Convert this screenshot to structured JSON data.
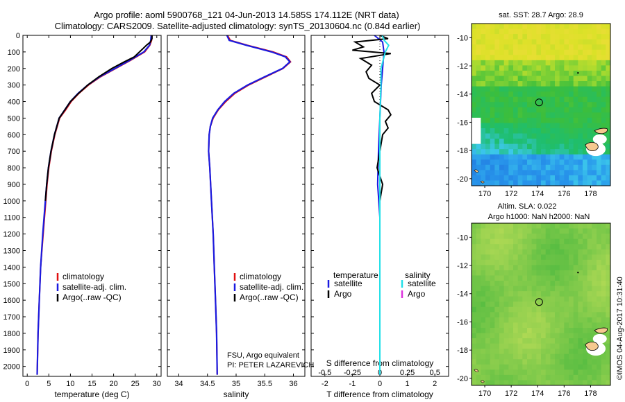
{
  "title": {
    "line1": "Argo profile: aoml 5900768_121 04-Jun-2013 14.585S 174.112E (NRT data)",
    "line2": "Climatology: CARS2009. Satellite-adjusted climatology: synTS_20130604.nc (0.84d earlier)"
  },
  "depth_axis": {
    "ticks": [
      0,
      100,
      200,
      300,
      400,
      500,
      600,
      700,
      800,
      900,
      1000,
      1100,
      1200,
      1300,
      1400,
      1500,
      1600,
      1700,
      1800,
      1900,
      2000
    ],
    "range": [
      0,
      2060
    ],
    "inverted": true
  },
  "colors": {
    "climatology": "#e01010",
    "satellite": "#1a1adf",
    "argo": "#000000",
    "salinity_satellite": "#22e0e8",
    "salinity_argo": "#dd33dd"
  },
  "chart_data": [
    {
      "type": "line",
      "panel": "temperature",
      "xlabel": "temperature (deg C)",
      "xlim": [
        -1,
        31
      ],
      "xticks": [
        0,
        5,
        10,
        15,
        20,
        25,
        30
      ],
      "legend_placement": "lower-center",
      "series": [
        {
          "key": "clim",
          "name": "climatology",
          "color": "#e01010",
          "depth": [
            0,
            30,
            60,
            100,
            150,
            200,
            250,
            300,
            350,
            400,
            450,
            500,
            600,
            700,
            800,
            900,
            1000,
            1200,
            1400,
            1600,
            1800,
            2050
          ],
          "values": [
            28.9,
            28.8,
            28.4,
            27.2,
            24.0,
            20.5,
            17.0,
            14.2,
            12.0,
            10.2,
            8.9,
            7.5,
            6.4,
            5.6,
            5.0,
            4.6,
            4.3,
            3.7,
            3.1,
            2.8,
            2.5,
            2.3
          ]
        },
        {
          "key": "sat",
          "name": "satellite-adj. clim.",
          "color": "#1a1adf",
          "depth": [
            0,
            30,
            60,
            100,
            150,
            200,
            250,
            300,
            350,
            400,
            450,
            500,
            600,
            700,
            800,
            900,
            1000,
            1200,
            1400,
            1600,
            1800,
            2050
          ],
          "values": [
            28.7,
            28.6,
            28.3,
            27.0,
            23.8,
            20.3,
            16.8,
            14.0,
            11.8,
            10.0,
            8.7,
            7.4,
            6.3,
            5.5,
            4.9,
            4.5,
            4.2,
            3.6,
            3.1,
            2.8,
            2.5,
            2.3
          ]
        },
        {
          "key": "argo",
          "name": "Argo(..raw -QC)",
          "color": "#000000",
          "depth": [
            0,
            20,
            40,
            60,
            80,
            100,
            130,
            160,
            200,
            250,
            300,
            350,
            400,
            450,
            500,
            600,
            700,
            800,
            900,
            1000
          ],
          "values": [
            28.9,
            28.9,
            28.5,
            27.6,
            26.8,
            26.0,
            24.8,
            22.5,
            19.6,
            16.6,
            14.0,
            11.9,
            10.0,
            8.7,
            7.4,
            6.3,
            5.5,
            4.9,
            4.5,
            4.2
          ]
        }
      ]
    },
    {
      "type": "line",
      "panel": "salinity",
      "xlabel": "salinity",
      "xlim": [
        33.8,
        36.2
      ],
      "xticks": [
        34,
        34.5,
        35,
        35.5,
        36
      ],
      "xtick_labels": [
        "34",
        "34.5",
        "35",
        "35.5",
        "36"
      ],
      "legend_placement": "lower-center",
      "series": [
        {
          "key": "clim",
          "name": "climatology",
          "color": "#e01010",
          "depth": [
            0,
            30,
            60,
            100,
            130,
            160,
            200,
            250,
            300,
            350,
            400,
            450,
            500,
            550,
            600,
            700,
            800,
            1000,
            1200,
            1400,
            1600,
            1800,
            2050
          ],
          "values": [
            34.85,
            34.9,
            35.2,
            35.65,
            35.88,
            35.95,
            35.82,
            35.52,
            35.22,
            34.98,
            34.82,
            34.69,
            34.6,
            34.55,
            34.53,
            34.52,
            34.54,
            34.57,
            34.6,
            34.62,
            34.64,
            34.66,
            34.67
          ]
        },
        {
          "key": "sat",
          "name": "satellite-adj. clim.",
          "color": "#1a1adf",
          "depth": [
            0,
            30,
            60,
            100,
            130,
            160,
            200,
            250,
            300,
            350,
            400,
            450,
            500,
            550,
            600,
            700,
            800,
            1000,
            1200,
            1400,
            1600,
            1800,
            2050
          ],
          "values": [
            34.84,
            34.88,
            35.18,
            35.62,
            35.86,
            35.94,
            35.81,
            35.5,
            35.2,
            34.96,
            34.8,
            34.68,
            34.59,
            34.55,
            34.53,
            34.52,
            34.54,
            34.57,
            34.6,
            34.62,
            34.64,
            34.66,
            34.67
          ]
        },
        {
          "key": "argo",
          "name": "Argo(..raw -QC)",
          "color": "#000000",
          "depth": [],
          "values": []
        }
      ]
    },
    {
      "type": "line",
      "panel": "difference",
      "xlabel_bottom": "T difference from climatology",
      "xlabel_top": "S difference from climatology",
      "xlim": [
        -2.5,
        2.5
      ],
      "xticks_bottom": [
        -2,
        -1,
        0,
        1,
        2
      ],
      "xticks_top": [
        -0.5,
        -0.25,
        0,
        0.25,
        0.5
      ],
      "xtick_labels_top": [
        "-0.5",
        "-0.25",
        "0",
        "0.25",
        "0.5"
      ],
      "legend_placement": "lower-center",
      "legend_headers": [
        "temperature",
        "salinity"
      ],
      "series": [
        {
          "key": "t_sat",
          "name": "satellite",
          "group": "temperature",
          "color": "#1a1adf",
          "quantity": "T",
          "depth": [
            0,
            40,
            100,
            200,
            300,
            500,
            700,
            900,
            1100,
            1500,
            2050
          ],
          "values": [
            -0.2,
            0.1,
            0.15,
            0.1,
            0.05,
            0.0,
            -0.05,
            -0.08,
            0.0,
            0.0,
            0.0
          ]
        },
        {
          "key": "t_argo",
          "name": "Argo",
          "group": "temperature",
          "color": "#000000",
          "quantity": "T",
          "depth": [
            0,
            20,
            40,
            70,
            90,
            110,
            140,
            180,
            220,
            260,
            300,
            350,
            400,
            450,
            480,
            520,
            560,
            600,
            700,
            800,
            900,
            1000
          ],
          "values": [
            0.0,
            0.3,
            -0.9,
            -0.6,
            -1.0,
            0.4,
            -0.7,
            -0.3,
            -0.5,
            -0.4,
            0.0,
            -0.3,
            -0.2,
            0.3,
            0.4,
            0.2,
            0.3,
            0.1,
            0.0,
            -0.1,
            0.1,
            0.0
          ]
        },
        {
          "key": "s_sat",
          "name": "satellite",
          "group": "salinity",
          "color": "#22e0e8",
          "quantity": "S",
          "depth": [
            0,
            30,
            60,
            100,
            150,
            200,
            300,
            500,
            700,
            1000,
            1500,
            2050
          ],
          "values": [
            0.02,
            0.04,
            0.08,
            0.05,
            0.03,
            0.01,
            0.01,
            0.0,
            0.0,
            0.0,
            0.0,
            0.0
          ]
        },
        {
          "key": "s_argo",
          "name": "Argo",
          "group": "salinity",
          "color": "#dd33dd",
          "quantity": "S",
          "depth": [],
          "values": []
        }
      ]
    },
    {
      "type": "heatmap",
      "panel": "sst_map",
      "title": "sat. SST: 28.7 Argo: 28.9",
      "xlim": [
        169,
        179.5
      ],
      "ylim": [
        -20.5,
        -9
      ],
      "xticks": [
        170,
        172,
        174,
        176,
        178
      ],
      "yticks": [
        -10,
        -12,
        -14,
        -16,
        -18,
        -20
      ],
      "argo_position": {
        "lon": 174.11,
        "lat": -14.59
      }
    },
    {
      "type": "heatmap",
      "panel": "sla_map",
      "title_line1": "Altim. SLA: 0.022",
      "title_line2": "Argo h1000: NaN h2000: NaN",
      "xlim": [
        169,
        179.5
      ],
      "ylim": [
        -20.5,
        -9
      ],
      "xticks": [
        170,
        172,
        174,
        176,
        178
      ],
      "yticks": [
        -10,
        -12,
        -14,
        -16,
        -18,
        -20
      ],
      "argo_position": {
        "lon": 174.11,
        "lat": -14.59
      }
    }
  ],
  "annotations": {
    "fsu": "FSU, Argo equivalent",
    "pi": "PI: PETER LAZAREVICH",
    "credit": "©IMOS 04-Aug-2017 10:31:40"
  }
}
